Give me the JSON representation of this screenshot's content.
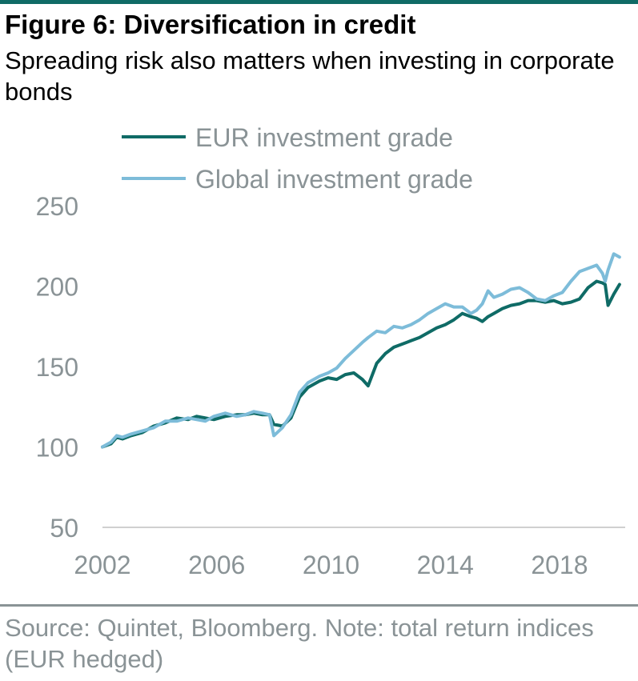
{
  "title": "Figure 6: Diversification in credit",
  "subtitle": "Spreading risk also matters when investing in corporate bonds",
  "source": "Source: Quintet, Bloomberg. Note: total return indices (EUR hedged)",
  "colors": {
    "eur": "#0f6b66",
    "global": "#7dbcd9",
    "axis_text": "#8a9396",
    "axis_line": "#d0d0d0"
  },
  "chart_data": {
    "type": "line",
    "ylim": [
      50,
      250
    ],
    "yticks": [
      50,
      100,
      150,
      200,
      250
    ],
    "xlim": [
      2002,
      2020.3
    ],
    "xticks": [
      2002,
      2006,
      2010,
      2014,
      2018
    ],
    "legend_position": "top",
    "grid": false,
    "series": [
      {
        "name": "EUR investment grade",
        "color": "#0f6b66",
        "x": [
          2002.0,
          2002.3,
          2002.5,
          2002.7,
          2003.0,
          2003.4,
          2003.8,
          2004.2,
          2004.6,
          2005.0,
          2005.3,
          2005.6,
          2005.9,
          2006.3,
          2006.7,
          2007.0,
          2007.3,
          2007.6,
          2007.85,
          2008.0,
          2008.3,
          2008.6,
          2008.9,
          2009.2,
          2009.6,
          2009.9,
          2010.2,
          2010.5,
          2010.8,
          2011.1,
          2011.3,
          2011.6,
          2011.9,
          2012.2,
          2012.5,
          2012.8,
          2013.1,
          2013.4,
          2013.7,
          2014.0,
          2014.3,
          2014.6,
          2014.9,
          2015.1,
          2015.3,
          2015.5,
          2015.7,
          2016.0,
          2016.3,
          2016.6,
          2016.9,
          2017.2,
          2017.5,
          2017.8,
          2018.1,
          2018.4,
          2018.7,
          2019.0,
          2019.3,
          2019.5,
          2019.6,
          2019.7,
          2019.9,
          2020.1
        ],
        "values": [
          100,
          102,
          106,
          105,
          107,
          109,
          113,
          115,
          118,
          117,
          119,
          118,
          117,
          119,
          120,
          120,
          121,
          120,
          120,
          114,
          113,
          118,
          131,
          137,
          141,
          143,
          142,
          145,
          146,
          142,
          138,
          152,
          158,
          162,
          164,
          166,
          168,
          171,
          174,
          176,
          179,
          183,
          181,
          180,
          178,
          181,
          183,
          186,
          188,
          189,
          191,
          191,
          190,
          191,
          189,
          190,
          192,
          199,
          203,
          202,
          201,
          188,
          195,
          201
        ]
      },
      {
        "name": "Global investment grade",
        "color": "#7dbcd9",
        "x": [
          2002.0,
          2002.3,
          2002.5,
          2002.7,
          2003.0,
          2003.4,
          2003.8,
          2004.2,
          2004.6,
          2005.0,
          2005.3,
          2005.6,
          2005.9,
          2006.3,
          2006.7,
          2007.0,
          2007.3,
          2007.6,
          2007.85,
          2008.0,
          2008.3,
          2008.6,
          2008.9,
          2009.2,
          2009.6,
          2009.9,
          2010.2,
          2010.5,
          2010.8,
          2011.1,
          2011.3,
          2011.6,
          2011.9,
          2012.2,
          2012.5,
          2012.8,
          2013.1,
          2013.4,
          2013.7,
          2014.0,
          2014.3,
          2014.6,
          2014.9,
          2015.1,
          2015.3,
          2015.5,
          2015.7,
          2016.0,
          2016.3,
          2016.6,
          2016.9,
          2017.2,
          2017.5,
          2017.8,
          2018.1,
          2018.4,
          2018.7,
          2019.0,
          2019.3,
          2019.5,
          2019.6,
          2019.7,
          2019.9,
          2020.1
        ],
        "values": [
          100,
          103,
          107,
          106,
          108,
          110,
          112,
          116,
          116,
          118,
          117,
          116,
          119,
          121,
          119,
          120,
          122,
          121,
          120,
          107,
          112,
          120,
          134,
          140,
          144,
          146,
          149,
          155,
          160,
          165,
          168,
          172,
          171,
          175,
          174,
          176,
          179,
          183,
          186,
          189,
          187,
          187,
          183,
          185,
          189,
          197,
          193,
          195,
          198,
          199,
          196,
          192,
          191,
          194,
          196,
          203,
          209,
          211,
          213,
          208,
          203,
          210,
          220,
          218
        ]
      }
    ]
  }
}
